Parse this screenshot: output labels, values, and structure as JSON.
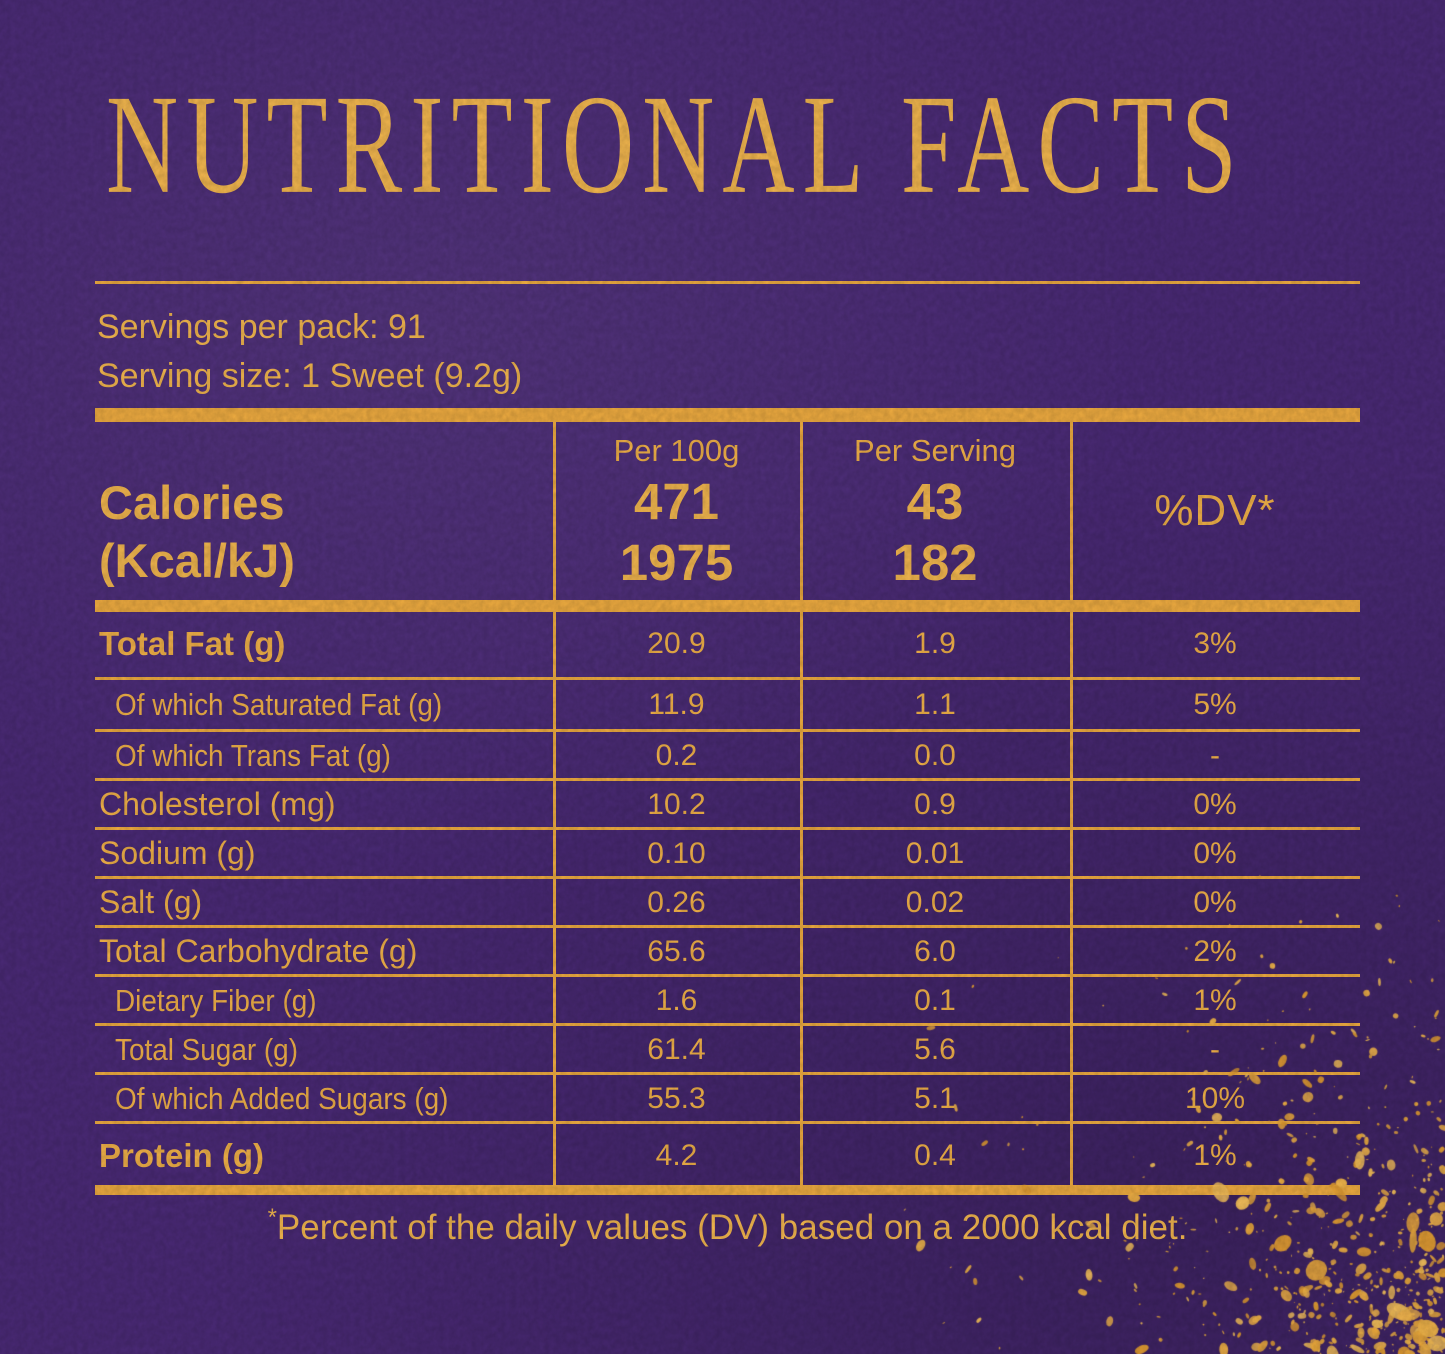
{
  "label": {
    "title": "NUTRITIONAL FACTS",
    "servings_per_pack": "Servings per pack: 91",
    "serving_size": "Serving size: 1 Sweet (9.2g)",
    "footnote_marker": "*",
    "footnote": "Percent of the daily values (DV) based on a 2000 kcal diet."
  },
  "colors": {
    "background_purple": "#4C2B79",
    "gold_text": "#F7BA50",
    "gold_rule": "#F3AF42"
  },
  "table": {
    "calories_label": "Calories",
    "calories_unit": "(Kcal/kJ)",
    "columns": {
      "per_100g": "Per 100g",
      "per_serving": "Per Serving",
      "daily_value": "%DV*"
    },
    "calories": {
      "per_100g_kcal": "471",
      "per_100g_kj": "1975",
      "per_serving_kcal": "43",
      "per_serving_kj": "182"
    },
    "rows": [
      {
        "label": "Total Fat (g)",
        "per_100g": "20.9",
        "per_serving": "1.9",
        "dv": "3%"
      },
      {
        "label": "Of which Saturated Fat (g)",
        "per_100g": "11.9",
        "per_serving": "1.1",
        "dv": "5%"
      },
      {
        "label": "Of which Trans Fat (g)",
        "per_100g": "0.2",
        "per_serving": "0.0",
        "dv": "-"
      },
      {
        "label": "Cholesterol (mg)",
        "per_100g": "10.2",
        "per_serving": "0.9",
        "dv": "0%"
      },
      {
        "label": "Sodium (g)",
        "per_100g": "0.10",
        "per_serving": "0.01",
        "dv": "0%"
      },
      {
        "label": "Salt (g)",
        "per_100g": "0.26",
        "per_serving": "0.02",
        "dv": "0%"
      },
      {
        "label": "Total Carbohydrate (g)",
        "per_100g": "65.6",
        "per_serving": "6.0",
        "dv": "2%"
      },
      {
        "label": "Dietary Fiber (g)",
        "per_100g": "1.6",
        "per_serving": "0.1",
        "dv": "1%"
      },
      {
        "label": "Total Sugar (g)",
        "per_100g": "61.4",
        "per_serving": "5.6",
        "dv": "-"
      },
      {
        "label": "Of which Added Sugars (g)",
        "per_100g": "55.3",
        "per_serving": "5.1",
        "dv": "10%"
      },
      {
        "label": "Protein (g)",
        "per_100g": "4.2",
        "per_serving": "0.4",
        "dv": "1%"
      }
    ]
  }
}
